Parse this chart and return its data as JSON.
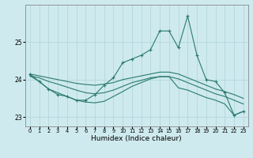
{
  "xlabel": "Humidex (Indice chaleur)",
  "ylabel": "",
  "background_color": "#ceeaee",
  "grid_color": "#aed4da",
  "line_color": "#2a7a6e",
  "xlim": [
    -0.5,
    23.5
  ],
  "ylim": [
    22.75,
    26.0
  ],
  "yticks": [
    23,
    24,
    25
  ],
  "xticks": [
    0,
    1,
    2,
    3,
    4,
    5,
    6,
    7,
    8,
    9,
    10,
    11,
    12,
    13,
    14,
    15,
    16,
    17,
    18,
    19,
    20,
    21,
    22,
    23
  ],
  "lines": [
    {
      "x": [
        0,
        1,
        2,
        3,
        4,
        5,
        6,
        7,
        8,
        9,
        10,
        11,
        12,
        13,
        14,
        15,
        16,
        17,
        18,
        19,
        20,
        21,
        22,
        23
      ],
      "y": [
        24.15,
        23.95,
        23.75,
        23.6,
        23.55,
        23.45,
        23.45,
        23.6,
        23.85,
        24.05,
        24.45,
        24.55,
        24.65,
        24.8,
        25.3,
        25.3,
        24.85,
        25.7,
        24.65,
        24.0,
        23.95,
        23.65,
        23.05,
        23.15
      ],
      "marker": true
    },
    {
      "x": [
        0,
        1,
        2,
        3,
        4,
        5,
        6,
        7,
        8,
        9,
        10,
        11,
        12,
        13,
        14,
        15,
        16,
        17,
        18,
        19,
        20,
        21,
        22,
        23
      ],
      "y": [
        24.15,
        24.1,
        24.05,
        24.0,
        23.95,
        23.9,
        23.87,
        23.85,
        23.88,
        23.92,
        24.0,
        24.05,
        24.1,
        24.15,
        24.2,
        24.2,
        24.15,
        24.05,
        23.95,
        23.85,
        23.75,
        23.68,
        23.6,
        23.5
      ],
      "marker": false
    },
    {
      "x": [
        0,
        1,
        2,
        3,
        4,
        5,
        6,
        7,
        8,
        9,
        10,
        11,
        12,
        13,
        14,
        15,
        16,
        17,
        18,
        19,
        20,
        21,
        22,
        23
      ],
      "y": [
        24.1,
        24.05,
        23.95,
        23.88,
        23.8,
        23.72,
        23.65,
        23.62,
        23.65,
        23.72,
        23.82,
        23.92,
        23.98,
        24.05,
        24.08,
        24.08,
        24.02,
        23.92,
        23.82,
        23.72,
        23.62,
        23.55,
        23.45,
        23.35
      ],
      "marker": false
    },
    {
      "x": [
        0,
        1,
        2,
        3,
        4,
        5,
        6,
        7,
        8,
        9,
        10,
        11,
        12,
        13,
        14,
        15,
        16,
        17,
        18,
        19,
        20,
        21,
        22,
        23
      ],
      "y": [
        24.1,
        23.95,
        23.75,
        23.65,
        23.55,
        23.45,
        23.4,
        23.38,
        23.42,
        23.55,
        23.68,
        23.82,
        23.92,
        24.02,
        24.08,
        24.08,
        23.78,
        23.72,
        23.62,
        23.52,
        23.45,
        23.35,
        23.05,
        23.15
      ],
      "marker": false
    }
  ]
}
